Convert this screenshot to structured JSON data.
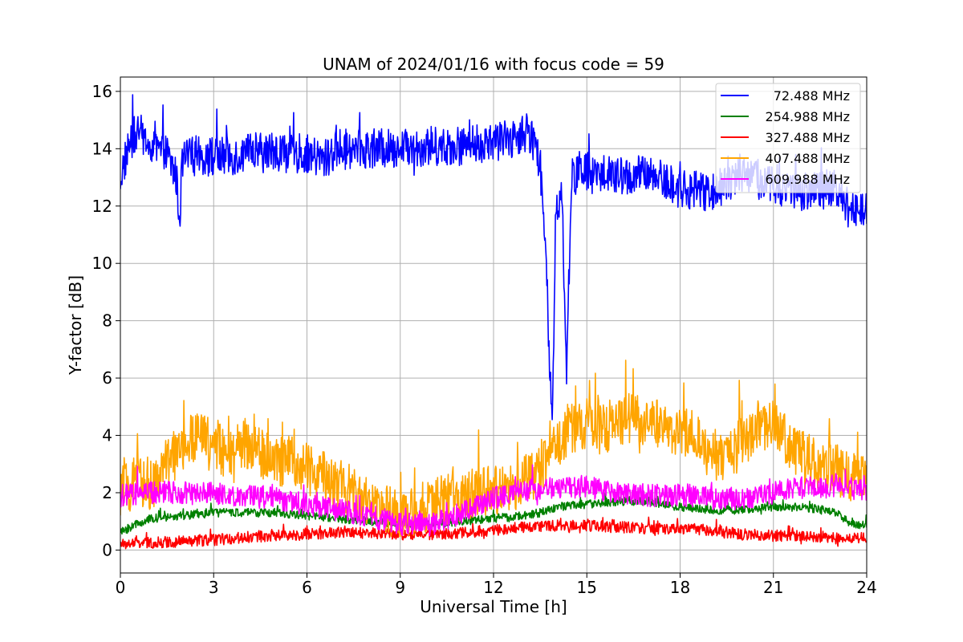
{
  "chart_data": {
    "type": "line",
    "title": "UNAM of 2024/01/16 with focus code = 59",
    "xlabel": "Universal Time [h]",
    "ylabel": "Y-factor [dB]",
    "xlim": [
      0,
      24
    ],
    "ylim": [
      -0.8,
      16.5
    ],
    "xticks": [
      0,
      3,
      6,
      9,
      12,
      15,
      18,
      21,
      24
    ],
    "yticks": [
      0,
      2,
      4,
      6,
      8,
      10,
      12,
      14,
      16
    ],
    "grid": true,
    "legend_position": "top-right",
    "series": [
      {
        "name": "72.488 MHz",
        "color": "#0000ff",
        "x": [
          0,
          0.3,
          0.6,
          1,
          1.5,
          1.8,
          1.9,
          2,
          2.5,
          3,
          4,
          5,
          6,
          6.5,
          7,
          8,
          9,
          10,
          11,
          12,
          12.5,
          13,
          13.3,
          13.5,
          13.7,
          13.8,
          13.9,
          14,
          14.2,
          14.35,
          14.5,
          15,
          16,
          17,
          18,
          19,
          20,
          21,
          22,
          23,
          23.5,
          24
        ],
        "y": [
          13.0,
          14.2,
          14.6,
          14.0,
          13.8,
          13.0,
          11.5,
          13.6,
          13.8,
          13.7,
          13.8,
          13.9,
          13.8,
          13.6,
          14.0,
          14.0,
          14.0,
          14.1,
          14.1,
          14.2,
          14.3,
          14.6,
          14.2,
          13.5,
          10.0,
          6.0,
          5.0,
          12.0,
          12.5,
          6.0,
          13.0,
          13.2,
          13.0,
          13.1,
          12.6,
          12.5,
          13.2,
          12.8,
          12.5,
          12.6,
          11.8,
          12.0
        ],
        "noise": 0.7
      },
      {
        "name": "254.988 MHz",
        "color": "#008000",
        "x": [
          0,
          0.5,
          1,
          2,
          3,
          4,
          5,
          6,
          7,
          8,
          9,
          10,
          11,
          12,
          13,
          13.5,
          14,
          15,
          16,
          17,
          18,
          19,
          20,
          21,
          22,
          23,
          23.5,
          24
        ],
        "y": [
          0.6,
          0.9,
          1.1,
          1.2,
          1.3,
          1.3,
          1.3,
          1.2,
          1.1,
          1.0,
          0.9,
          0.9,
          1.0,
          1.1,
          1.2,
          1.3,
          1.5,
          1.6,
          1.7,
          1.7,
          1.5,
          1.4,
          1.4,
          1.5,
          1.5,
          1.3,
          0.9,
          0.9
        ],
        "noise": 0.15
      },
      {
        "name": "327.488 MHz",
        "color": "#ff0000",
        "x": [
          0,
          1,
          2,
          3,
          4,
          5,
          6,
          7,
          8,
          9,
          10,
          11,
          12,
          13,
          14,
          15,
          16,
          17,
          18,
          19,
          20,
          21,
          22,
          23,
          24
        ],
        "y": [
          0.2,
          0.25,
          0.3,
          0.35,
          0.45,
          0.5,
          0.55,
          0.6,
          0.6,
          0.55,
          0.55,
          0.6,
          0.7,
          0.8,
          0.85,
          0.85,
          0.8,
          0.75,
          0.75,
          0.7,
          0.55,
          0.5,
          0.5,
          0.4,
          0.45
        ],
        "noise": 0.2
      },
      {
        "name": "407.488 MHz",
        "color": "#ffa500",
        "x": [
          0,
          0.5,
          1,
          1.5,
          2,
          2.5,
          3,
          3.5,
          4,
          4.5,
          5,
          5.5,
          6,
          6.5,
          7,
          7.5,
          8,
          8.5,
          9,
          9.5,
          10,
          10.5,
          11,
          11.5,
          12,
          12.5,
          13,
          13.5,
          14,
          14.5,
          15,
          15.5,
          16,
          16.5,
          17,
          17.5,
          18,
          18.5,
          19,
          19.5,
          20,
          20.5,
          21,
          21.5,
          22,
          22.5,
          23,
          23.5,
          24
        ],
        "y": [
          2.0,
          2.4,
          2.2,
          3.0,
          3.6,
          4.0,
          3.8,
          3.2,
          3.8,
          3.4,
          3.0,
          3.2,
          2.8,
          2.6,
          2.2,
          2.0,
          1.6,
          1.4,
          1.2,
          1.4,
          1.6,
          1.8,
          1.9,
          2.0,
          2.1,
          2.2,
          2.4,
          2.8,
          3.6,
          4.2,
          4.4,
          4.2,
          4.5,
          4.6,
          4.3,
          4.5,
          4.0,
          4.2,
          3.4,
          3.2,
          3.8,
          4.2,
          4.3,
          3.8,
          3.2,
          3.0,
          2.8,
          2.6,
          2.8
        ],
        "noise": 0.9
      },
      {
        "name": "609.988 MHz",
        "color": "#ff00ff",
        "x": [
          0,
          1,
          2,
          3,
          4,
          5,
          6,
          7,
          8,
          9,
          10,
          11,
          12,
          13,
          14,
          15,
          16,
          17,
          18,
          19,
          20,
          21,
          22,
          23,
          24
        ],
        "y": [
          1.9,
          2.0,
          2.0,
          2.0,
          1.9,
          1.8,
          1.6,
          1.4,
          1.2,
          0.9,
          0.9,
          1.3,
          1.8,
          2.1,
          2.2,
          2.2,
          2.0,
          1.9,
          1.9,
          1.8,
          1.8,
          2.0,
          2.2,
          2.2,
          2.1
        ],
        "noise": 0.4
      }
    ]
  }
}
